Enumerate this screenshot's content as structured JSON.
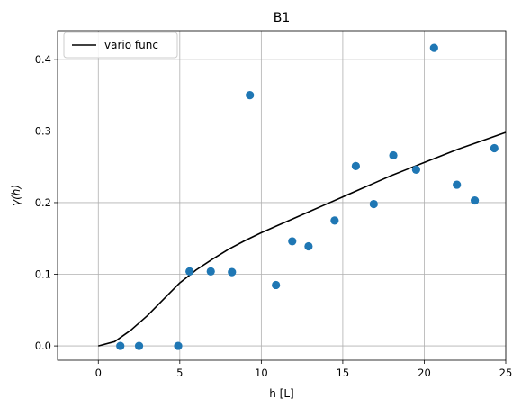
{
  "chart_data": {
    "type": "scatter",
    "title": "B1",
    "xlabel": "h [L]",
    "ylabel": "γ(h)",
    "xlim": [
      -2.5,
      25
    ],
    "ylim": [
      -0.02,
      0.44
    ],
    "xticks": [
      0,
      5,
      10,
      15,
      20,
      25
    ],
    "yticks": [
      0.0,
      0.1,
      0.2,
      0.3,
      0.4
    ],
    "xtick_labels": [
      "0",
      "5",
      "10",
      "15",
      "20",
      "25"
    ],
    "ytick_labels": [
      "0.0",
      "0.1",
      "0.2",
      "0.3",
      "0.4"
    ],
    "grid": true,
    "legend": {
      "location": "top-left",
      "entries": [
        "vario func"
      ]
    },
    "points": {
      "color": "#1f77b4",
      "x": [
        1.35,
        2.5,
        4.9,
        5.6,
        6.9,
        8.2,
        9.3,
        10.9,
        11.9,
        12.9,
        14.5,
        15.8,
        16.9,
        18.1,
        19.5,
        20.6,
        22.0,
        23.1,
        24.3
      ],
      "y": [
        0.0,
        0.0,
        0.0,
        0.104,
        0.104,
        0.103,
        0.35,
        0.085,
        0.146,
        0.139,
        0.175,
        0.251,
        0.198,
        0.266,
        0.246,
        0.416,
        0.225,
        0.203,
        0.276
      ]
    },
    "series": [
      {
        "name": "vario func",
        "color": "#000000",
        "x": [
          0,
          1,
          2,
          3,
          4,
          5,
          6,
          7,
          8,
          9,
          10,
          11,
          12,
          13,
          14,
          15,
          16,
          17,
          18,
          19,
          20,
          21,
          22,
          23,
          24,
          25
        ],
        "y": [
          0.0,
          0.006,
          0.022,
          0.042,
          0.065,
          0.088,
          0.106,
          0.121,
          0.135,
          0.147,
          0.158,
          0.168,
          0.178,
          0.188,
          0.198,
          0.208,
          0.218,
          0.228,
          0.238,
          0.247,
          0.256,
          0.265,
          0.274,
          0.282,
          0.29,
          0.298
        ]
      }
    ]
  }
}
